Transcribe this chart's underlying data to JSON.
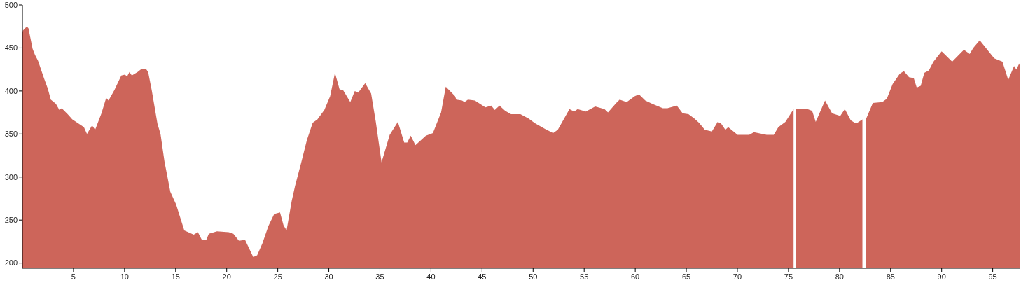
{
  "chart_data": {
    "type": "area",
    "color": "#cd655a",
    "xlim": [
      0,
      97.7
    ],
    "ylim": [
      194,
      500
    ],
    "xticks": [
      5,
      10,
      15,
      20,
      25,
      30,
      35,
      40,
      45,
      50,
      55,
      60,
      65,
      70,
      75,
      80,
      85,
      90,
      95
    ],
    "yticks": [
      200,
      250,
      300,
      350,
      400,
      450,
      500
    ],
    "grid": false,
    "x": [
      0,
      0.04,
      0.43,
      0.59,
      1.0,
      1.23,
      1.53,
      2.14,
      2.48,
      2.78,
      3.28,
      3.62,
      3.85,
      4.43,
      4.89,
      6.02,
      6.32,
      6.82,
      7.12,
      7.74,
      8.2,
      8.43,
      9.0,
      9.68,
      10.03,
      10.25,
      10.48,
      10.71,
      11.28,
      11.69,
      12.08,
      12.31,
      12.66,
      13.22,
      13.52,
      13.91,
      14.48,
      15.05,
      15.85,
      16.77,
      17.18,
      17.57,
      18.0,
      18.25,
      19.05,
      20.2,
      20.65,
      21.2,
      21.8,
      22.6,
      22.98,
      23.5,
      24.08,
      24.65,
      25.22,
      25.56,
      25.86,
      26.36,
      26.7,
      27.28,
      27.85,
      28.42,
      28.88,
      29.56,
      30.13,
      30.6,
      31.05,
      31.4,
      32.1,
      32.54,
      32.88,
      33.56,
      34.14,
      34.6,
      35.16,
      35.96,
      36.76,
      37.38,
      37.68,
      38.02,
      38.48,
      39.5,
      40.19,
      40.99,
      41.45,
      42.36,
      42.48,
      43.05,
      43.28,
      43.62,
      44.3,
      45.33,
      45.9,
      46.25,
      46.71,
      47.27,
      47.84,
      48.76,
      49.56,
      50.25,
      51.16,
      51.96,
      52.42,
      53.56,
      54.02,
      54.36,
      55.16,
      56.08,
      56.99,
      57.33,
      58.14,
      58.47,
      59.16,
      59.96,
      60.37,
      60.98,
      61.67,
      62.7,
      63.15,
      64.07,
      64.64,
      65.21,
      65.79,
      66.24,
      66.81,
      67.5,
      68.07,
      68.41,
      68.82,
      69.1,
      70.02,
      71.16,
      71.62,
      72.87,
      73.56,
      74.01,
      74.7,
      75.5,
      75.6,
      75.7,
      76.86,
      77.32,
      77.67,
      78.58,
      79.27,
      80.07,
      80.52,
      81.1,
      81.62,
      82.24,
      82.4,
      82.58,
      83.26,
      84.18,
      84.63,
      85.2,
      85.9,
      86.3,
      86.81,
      87.27,
      87.56,
      87.95,
      88.3,
      88.75,
      89.2,
      90.0,
      91.03,
      92.18,
      92.75,
      93.09,
      93.73,
      95.15,
      95.95,
      96.52,
      97.09,
      97.32,
      97.6,
      97.7
    ],
    "values": [
      468,
      470,
      475,
      473,
      449,
      442,
      435,
      414,
      403,
      390,
      385,
      378,
      380,
      373,
      367,
      358,
      350,
      360,
      355,
      374,
      392,
      389,
      401,
      418,
      419,
      417,
      422,
      418,
      422,
      426,
      426,
      422,
      401,
      362,
      350,
      318,
      283,
      268,
      238,
      233,
      236,
      227,
      227,
      234,
      237,
      236,
      234,
      226,
      227,
      207,
      209,
      223,
      243,
      257,
      259,
      244,
      238,
      272,
      290,
      316,
      343,
      363,
      367,
      378,
      394,
      421,
      402,
      401,
      387,
      400,
      398,
      409,
      397,
      364,
      317,
      349,
      364,
      340,
      340,
      348,
      337,
      348,
      351,
      375,
      405,
      394,
      390,
      389,
      387,
      390,
      389,
      381,
      383,
      378,
      383,
      377,
      373,
      373,
      368,
      362,
      356,
      351,
      355,
      379,
      376,
      379,
      376,
      382,
      379,
      375,
      386,
      390,
      387,
      394,
      396,
      389,
      385,
      380,
      380,
      383,
      374,
      373,
      368,
      363,
      355,
      353,
      364,
      362,
      355,
      358,
      349,
      349,
      352,
      349,
      349,
      358,
      364,
      379,
      null,
      379,
      379,
      377,
      364,
      389,
      374,
      371,
      379,
      366,
      362,
      367,
      null,
      367,
      386,
      387,
      391,
      408,
      420,
      423,
      416,
      415,
      404,
      406,
      421,
      424,
      434,
      446,
      434,
      448,
      443,
      450,
      459,
      438,
      434,
      413,
      429,
      425,
      432,
      425
    ]
  }
}
